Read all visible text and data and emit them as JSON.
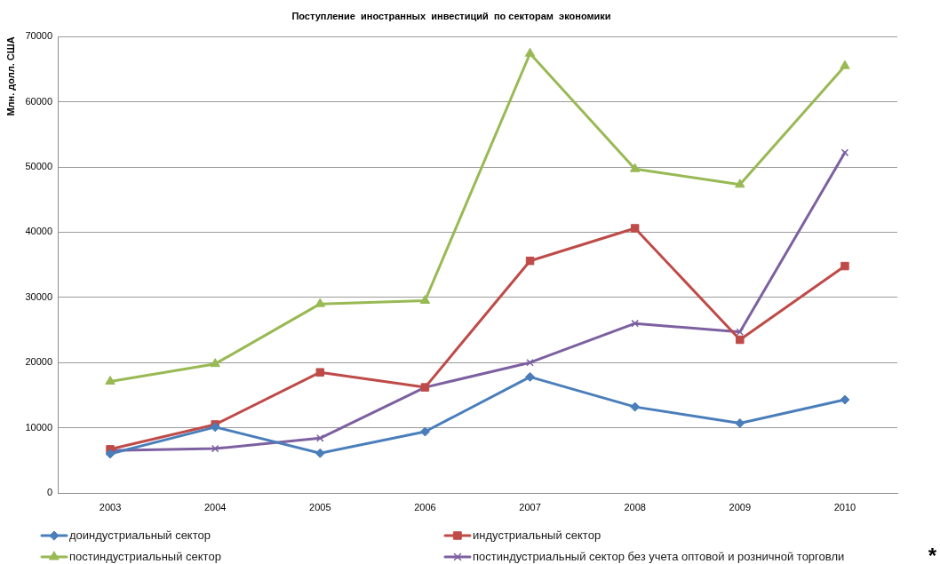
{
  "chart_data": {
    "type": "line",
    "title": "Поступление  иностранных  инвестиций  по секторам  экономики",
    "ylabel": "Млн. долл. США",
    "categories": [
      "2003",
      "2004",
      "2005",
      "2006",
      "2007",
      "2008",
      "2009",
      "2010"
    ],
    "series": [
      {
        "name": "доиндустриальный сектор",
        "color": "#4a7ebb",
        "marker": "diamond",
        "values": [
          6000,
          10100,
          6100,
          9400,
          17800,
          13200,
          10700,
          14300
        ]
      },
      {
        "name": "индустриальный сектор",
        "color": "#be4b48",
        "marker": "square",
        "values": [
          6700,
          10500,
          18500,
          16200,
          35600,
          40600,
          23500,
          34800
        ]
      },
      {
        "name": "постиндустриальный сектор",
        "color": "#98b954",
        "marker": "triangle",
        "values": [
          17100,
          19800,
          29000,
          29500,
          67400,
          49700,
          47300,
          65500
        ]
      },
      {
        "name": "постиндустриальный сектор без учета оптовой и розничной торговли",
        "color": "#7d60a0",
        "marker": "cross",
        "values": [
          6500,
          6800,
          8400,
          16200,
          20000,
          26000,
          24700,
          52200
        ]
      }
    ],
    "ylim": [
      0,
      70000
    ],
    "yticks": [
      0,
      10000,
      20000,
      30000,
      40000,
      50000,
      60000,
      70000
    ],
    "grid": "y",
    "legend": "bottom",
    "annotations": [
      "*"
    ]
  }
}
